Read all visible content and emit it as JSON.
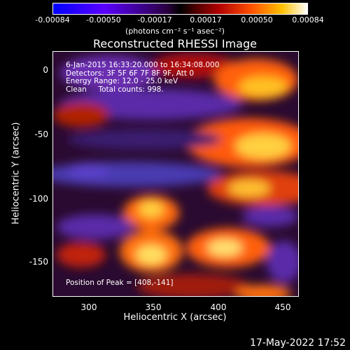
{
  "colorbar": {
    "ticks": [
      "-0.00084",
      "-0.00050",
      "-0.00017",
      "0.00017",
      "0.00050",
      "0.00084"
    ],
    "units": "(photons cm⁻² s⁻¹ asec⁻²)"
  },
  "title": "Reconstructed RHESSI Image",
  "info": {
    "time": "6-Jan-2015 16:33:20.000 to 16:34:08.000",
    "detectors": "Detectors: 3F 5F 6F 7F 8F 9F, Att 0",
    "energy": "Energy Range: 12.0 - 25.0 keV",
    "method": "Clean     Total counts: 998."
  },
  "peak": "Position of Peak = [408,-141]",
  "axes": {
    "xlabel": "Heliocentric X (arcsec)",
    "ylabel": "Heliocentric Y (arcsec)",
    "xticks": [
      "300",
      "350",
      "400",
      "450"
    ],
    "yticks": [
      "0",
      "-50",
      "-100",
      "-150"
    ]
  },
  "timestamp": "17-May-2022 17:52"
}
